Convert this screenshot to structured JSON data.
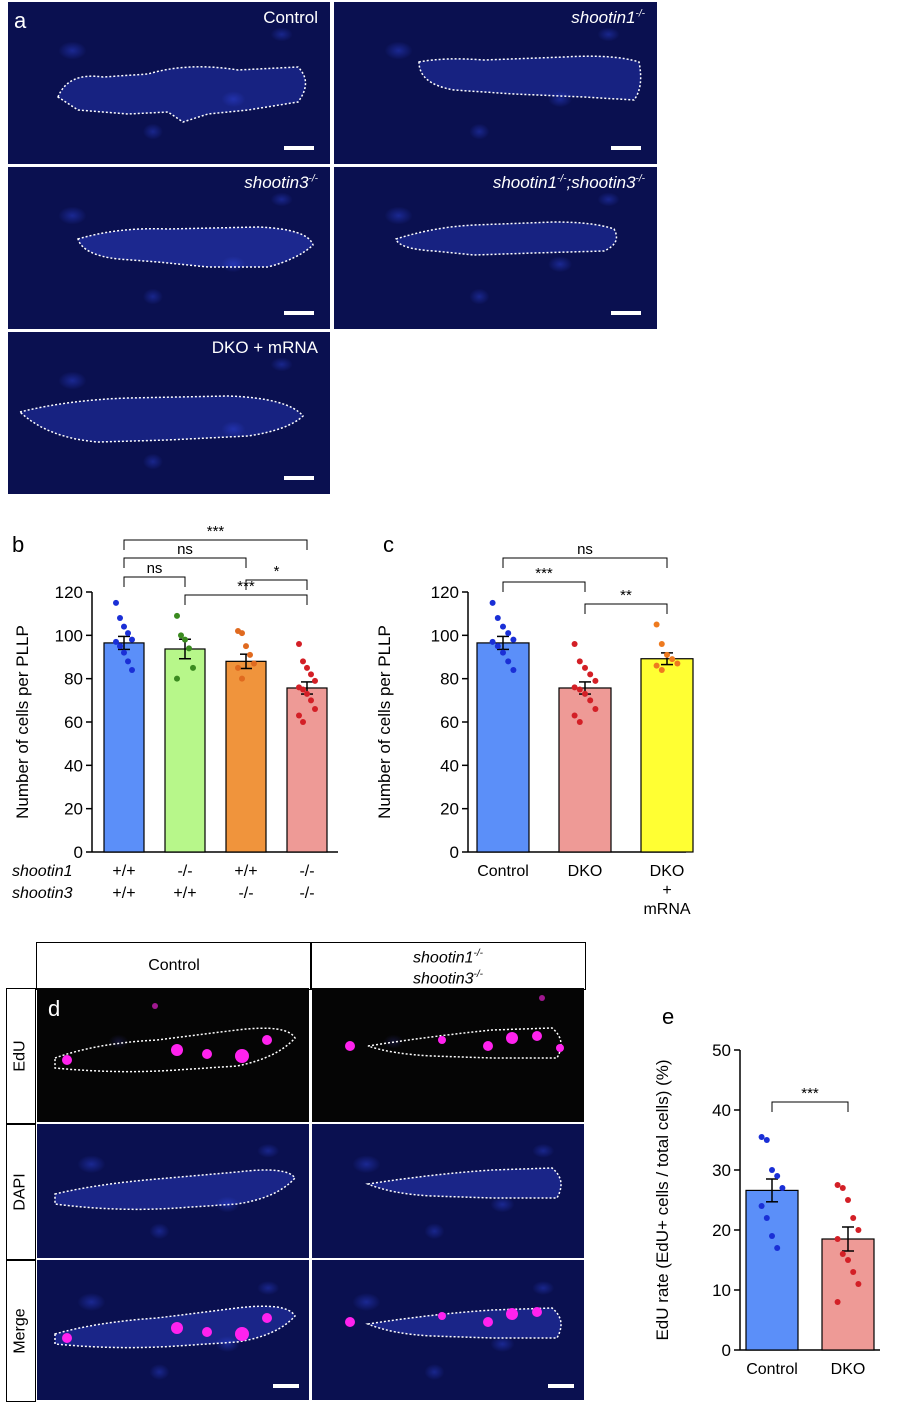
{
  "panel_a": {
    "letter": "a",
    "tiles": [
      {
        "label": "Control",
        "italic": false
      },
      {
        "label": "shootin1",
        "sup": "-/-",
        "italic": true
      },
      {
        "label": "shootin3",
        "sup": "-/-",
        "italic": true
      },
      {
        "label_parts": [
          "shootin1",
          "-/-",
          ";shootin3",
          "-/-"
        ],
        "italic": true
      },
      {
        "label": "DKO + mRNA",
        "italic": false
      }
    ]
  },
  "panel_b": {
    "letter": "b"
  },
  "panel_c": {
    "letter": "c"
  },
  "panel_d": {
    "letter": "d",
    "col_headers": [
      "Control",
      "shootin1",
      "shootin3"
    ],
    "col_header_sup": "-/-",
    "row_labels": [
      "EdU",
      "DAPI",
      "Merge"
    ]
  },
  "panel_e": {
    "letter": "e"
  },
  "chart_data": [
    {
      "id": "b",
      "type": "bar",
      "ylabel": "Number of cells per PLLP",
      "ylim": [
        0,
        120
      ],
      "yticks": [
        0,
        20,
        40,
        60,
        80,
        100,
        120
      ],
      "row_labels": [
        "shootin1",
        "shootin3"
      ],
      "categories": [
        [
          "+/+",
          "+/+"
        ],
        [
          "-/-",
          "+/+"
        ],
        [
          "+/+",
          "-/-"
        ],
        [
          "-/-",
          "-/-"
        ]
      ],
      "values": [
        96.5,
        93.7,
        88.0,
        75.7
      ],
      "errors": [
        3.0,
        4.5,
        3.3,
        2.8
      ],
      "colors": [
        "#5b8ff9",
        "#b7f78a",
        "#f0943c",
        "#ee9a96"
      ],
      "dot_colors": [
        "#1a2fd6",
        "#3a8a1f",
        "#e06a1f",
        "#d31f26"
      ],
      "points": [
        [
          115,
          108,
          104,
          101,
          98,
          97,
          95,
          92,
          88,
          84
        ],
        [
          109,
          100,
          98,
          94,
          85,
          80
        ],
        [
          102,
          101,
          95,
          91,
          87,
          85,
          80
        ],
        [
          96,
          88,
          85,
          82,
          79,
          76,
          75,
          73,
          70,
          66,
          63,
          60
        ]
      ],
      "significance": [
        {
          "from": 0,
          "to": 3,
          "label": "***"
        },
        {
          "from": 0,
          "to": 2,
          "label": "ns"
        },
        {
          "from": 0,
          "to": 1,
          "label": "ns"
        },
        {
          "from": 2,
          "to": 3,
          "label": "*"
        },
        {
          "from": 1,
          "to": 3,
          "label": "***"
        }
      ]
    },
    {
      "id": "c",
      "type": "bar",
      "ylabel": "Number of cells per PLLP",
      "ylim": [
        0,
        120
      ],
      "yticks": [
        0,
        20,
        40,
        60,
        80,
        100,
        120
      ],
      "categories": [
        "Control",
        "DKO",
        "DKO\n+\nmRNA"
      ],
      "values": [
        96.5,
        75.7,
        89.2
      ],
      "errors": [
        3.0,
        2.8,
        2.7
      ],
      "colors": [
        "#5b8ff9",
        "#ee9a96",
        "#ffff33"
      ],
      "dot_colors": [
        "#1a2fd6",
        "#d31f26",
        "#ee7a1f"
      ],
      "points": [
        [
          115,
          108,
          104,
          101,
          98,
          97,
          95,
          92,
          88,
          84
        ],
        [
          96,
          88,
          85,
          82,
          79,
          76,
          75,
          73,
          70,
          66,
          63,
          60
        ],
        [
          105,
          96,
          91,
          89,
          87,
          86,
          84
        ]
      ],
      "significance": [
        {
          "from": 0,
          "to": 2,
          "label": "ns"
        },
        {
          "from": 0,
          "to": 1,
          "label": "***"
        },
        {
          "from": 1,
          "to": 2,
          "label": "**"
        }
      ]
    },
    {
      "id": "e",
      "type": "bar",
      "ylabel": "EdU rate (EdU+ cells / total cells) (%)",
      "ylim": [
        0,
        50
      ],
      "yticks": [
        0,
        10,
        20,
        30,
        40,
        50
      ],
      "categories": [
        "Control",
        "DKO"
      ],
      "values": [
        26.6,
        18.5
      ],
      "errors": [
        1.9,
        2.0
      ],
      "colors": [
        "#5b8ff9",
        "#ee9a96"
      ],
      "dot_colors": [
        "#1a2fd6",
        "#d31f26"
      ],
      "points": [
        [
          35.5,
          35,
          30,
          29,
          27,
          24,
          22,
          19,
          17
        ],
        [
          27.5,
          27,
          25,
          22,
          20,
          18.5,
          16,
          15,
          13,
          11,
          8
        ]
      ],
      "significance": [
        {
          "from": 0,
          "to": 1,
          "label": "***"
        }
      ]
    }
  ]
}
